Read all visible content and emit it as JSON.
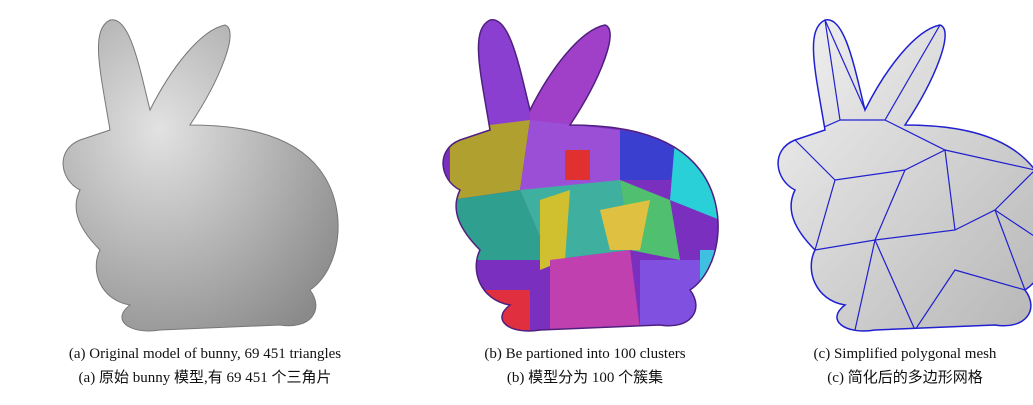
{
  "figure": {
    "panels": [
      {
        "caption_en": "(a) Original model of bunny, 69 451 triangles",
        "caption_zh": "(a)  原始 bunny 模型,有 69 451 个三角片"
      },
      {
        "caption_en": "(b) Be partioned into 100 clusters",
        "caption_zh": "(b)  模型分为 100 个簇集"
      },
      {
        "caption_en": "(c) Simplified polygonal mesh",
        "caption_zh": "(c)  简化后的多边形网格"
      }
    ]
  }
}
